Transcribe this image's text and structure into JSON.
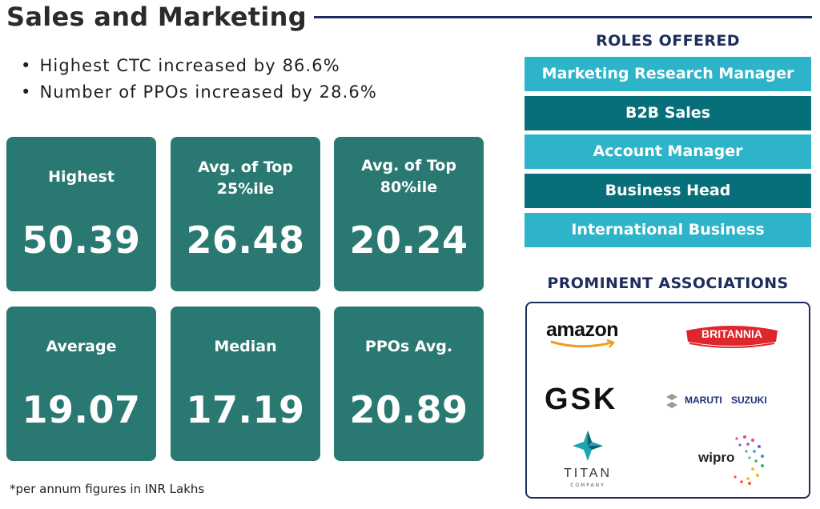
{
  "header": {
    "title": "Sales and Marketing"
  },
  "highlights": [
    "Highest CTC increased by 86.6%",
    "Number of PPOs increased by 28.6%"
  ],
  "stats": [
    {
      "label": "Highest",
      "value": "50.39"
    },
    {
      "label": "Avg. of Top 25%ile",
      "value": "26.48"
    },
    {
      "label": "Avg. of Top 80%ile",
      "value": "20.24"
    },
    {
      "label": "Average",
      "value": "19.07"
    },
    {
      "label": "Median",
      "value": "17.19"
    },
    {
      "label": "PPOs Avg.",
      "value": "20.89"
    }
  ],
  "footnote": "*per annum figures in INR Lakhs",
  "roles": {
    "title": "ROLES OFFERED",
    "items": [
      "Marketing Research Manager",
      "B2B Sales",
      "Account Manager",
      "Business Head",
      "International Business"
    ]
  },
  "associations": {
    "title": "PROMINENT ASSOCIATIONS",
    "logos": {
      "amazon": "amazon",
      "britannia": "BRITANNIA",
      "gsk": "GSK",
      "maruti": "MARUTI SUZUKI",
      "titan": "TITAN",
      "titan_sub": "COMPANY",
      "wipro": "wipro"
    }
  },
  "colors": {
    "card": "#2a7872",
    "role_light": "#2eb4c9",
    "role_dark": "#066f79",
    "navy": "#1e2e5c"
  }
}
